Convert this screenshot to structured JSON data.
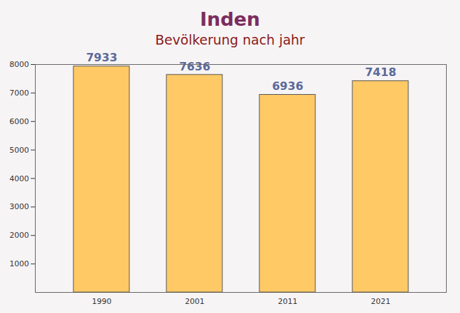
{
  "chart_data": {
    "type": "bar",
    "title": "Inden",
    "subtitle": "Bevölkerung nach jahr",
    "categories": [
      "1990",
      "2001",
      "2011",
      "2021"
    ],
    "values": [
      7933,
      7636,
      6936,
      7418
    ],
    "color": "#ffc966",
    "ylim": [
      0,
      8000
    ],
    "yticks": [
      1000,
      2000,
      3000,
      4000,
      5000,
      6000,
      7000,
      8000
    ],
    "grid": false,
    "data_labels": true
  }
}
